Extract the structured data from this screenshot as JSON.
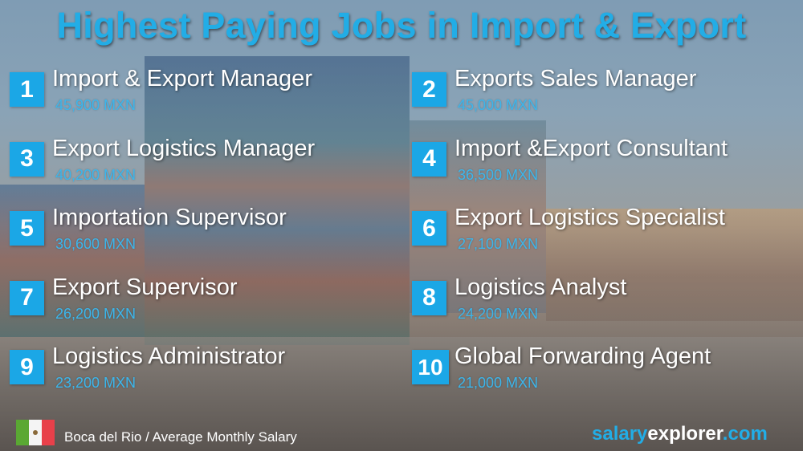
{
  "title": "Highest Paying Jobs in Import & Export",
  "jobs": [
    {
      "rank": "1",
      "title": "Import & Export Manager",
      "salary": "45,900 MXN"
    },
    {
      "rank": "2",
      "title": "Exports Sales Manager",
      "salary": "45,000 MXN"
    },
    {
      "rank": "3",
      "title": "Export Logistics Manager",
      "salary": "40,200 MXN"
    },
    {
      "rank": "4",
      "title": "Import &Export Consultant",
      "salary": "36,500 MXN"
    },
    {
      "rank": "5",
      "title": "Importation Supervisor",
      "salary": "30,600 MXN"
    },
    {
      "rank": "6",
      "title": "Export Logistics Specialist",
      "salary": "27,100 MXN"
    },
    {
      "rank": "7",
      "title": "Export Supervisor",
      "salary": "26,200 MXN"
    },
    {
      "rank": "8",
      "title": "Logistics Analyst",
      "salary": "24,200 MXN"
    },
    {
      "rank": "9",
      "title": "Logistics Administrator",
      "salary": "23,200 MXN"
    },
    {
      "rank": "10",
      "title": "Global Forwarding Agent",
      "salary": "21,000 MXN"
    }
  ],
  "footer": {
    "flag_icon": "mexico-flag",
    "location": "Boca del Rio / Average Monthly Salary",
    "brand": {
      "part1": "salary",
      "part2": "explorer",
      "part3": ".com"
    }
  },
  "colors": {
    "accent": "#1ba7e6",
    "salary_text": "#3cb6ec",
    "flag_green": "#5aa833",
    "flag_red": "#e8404a"
  }
}
